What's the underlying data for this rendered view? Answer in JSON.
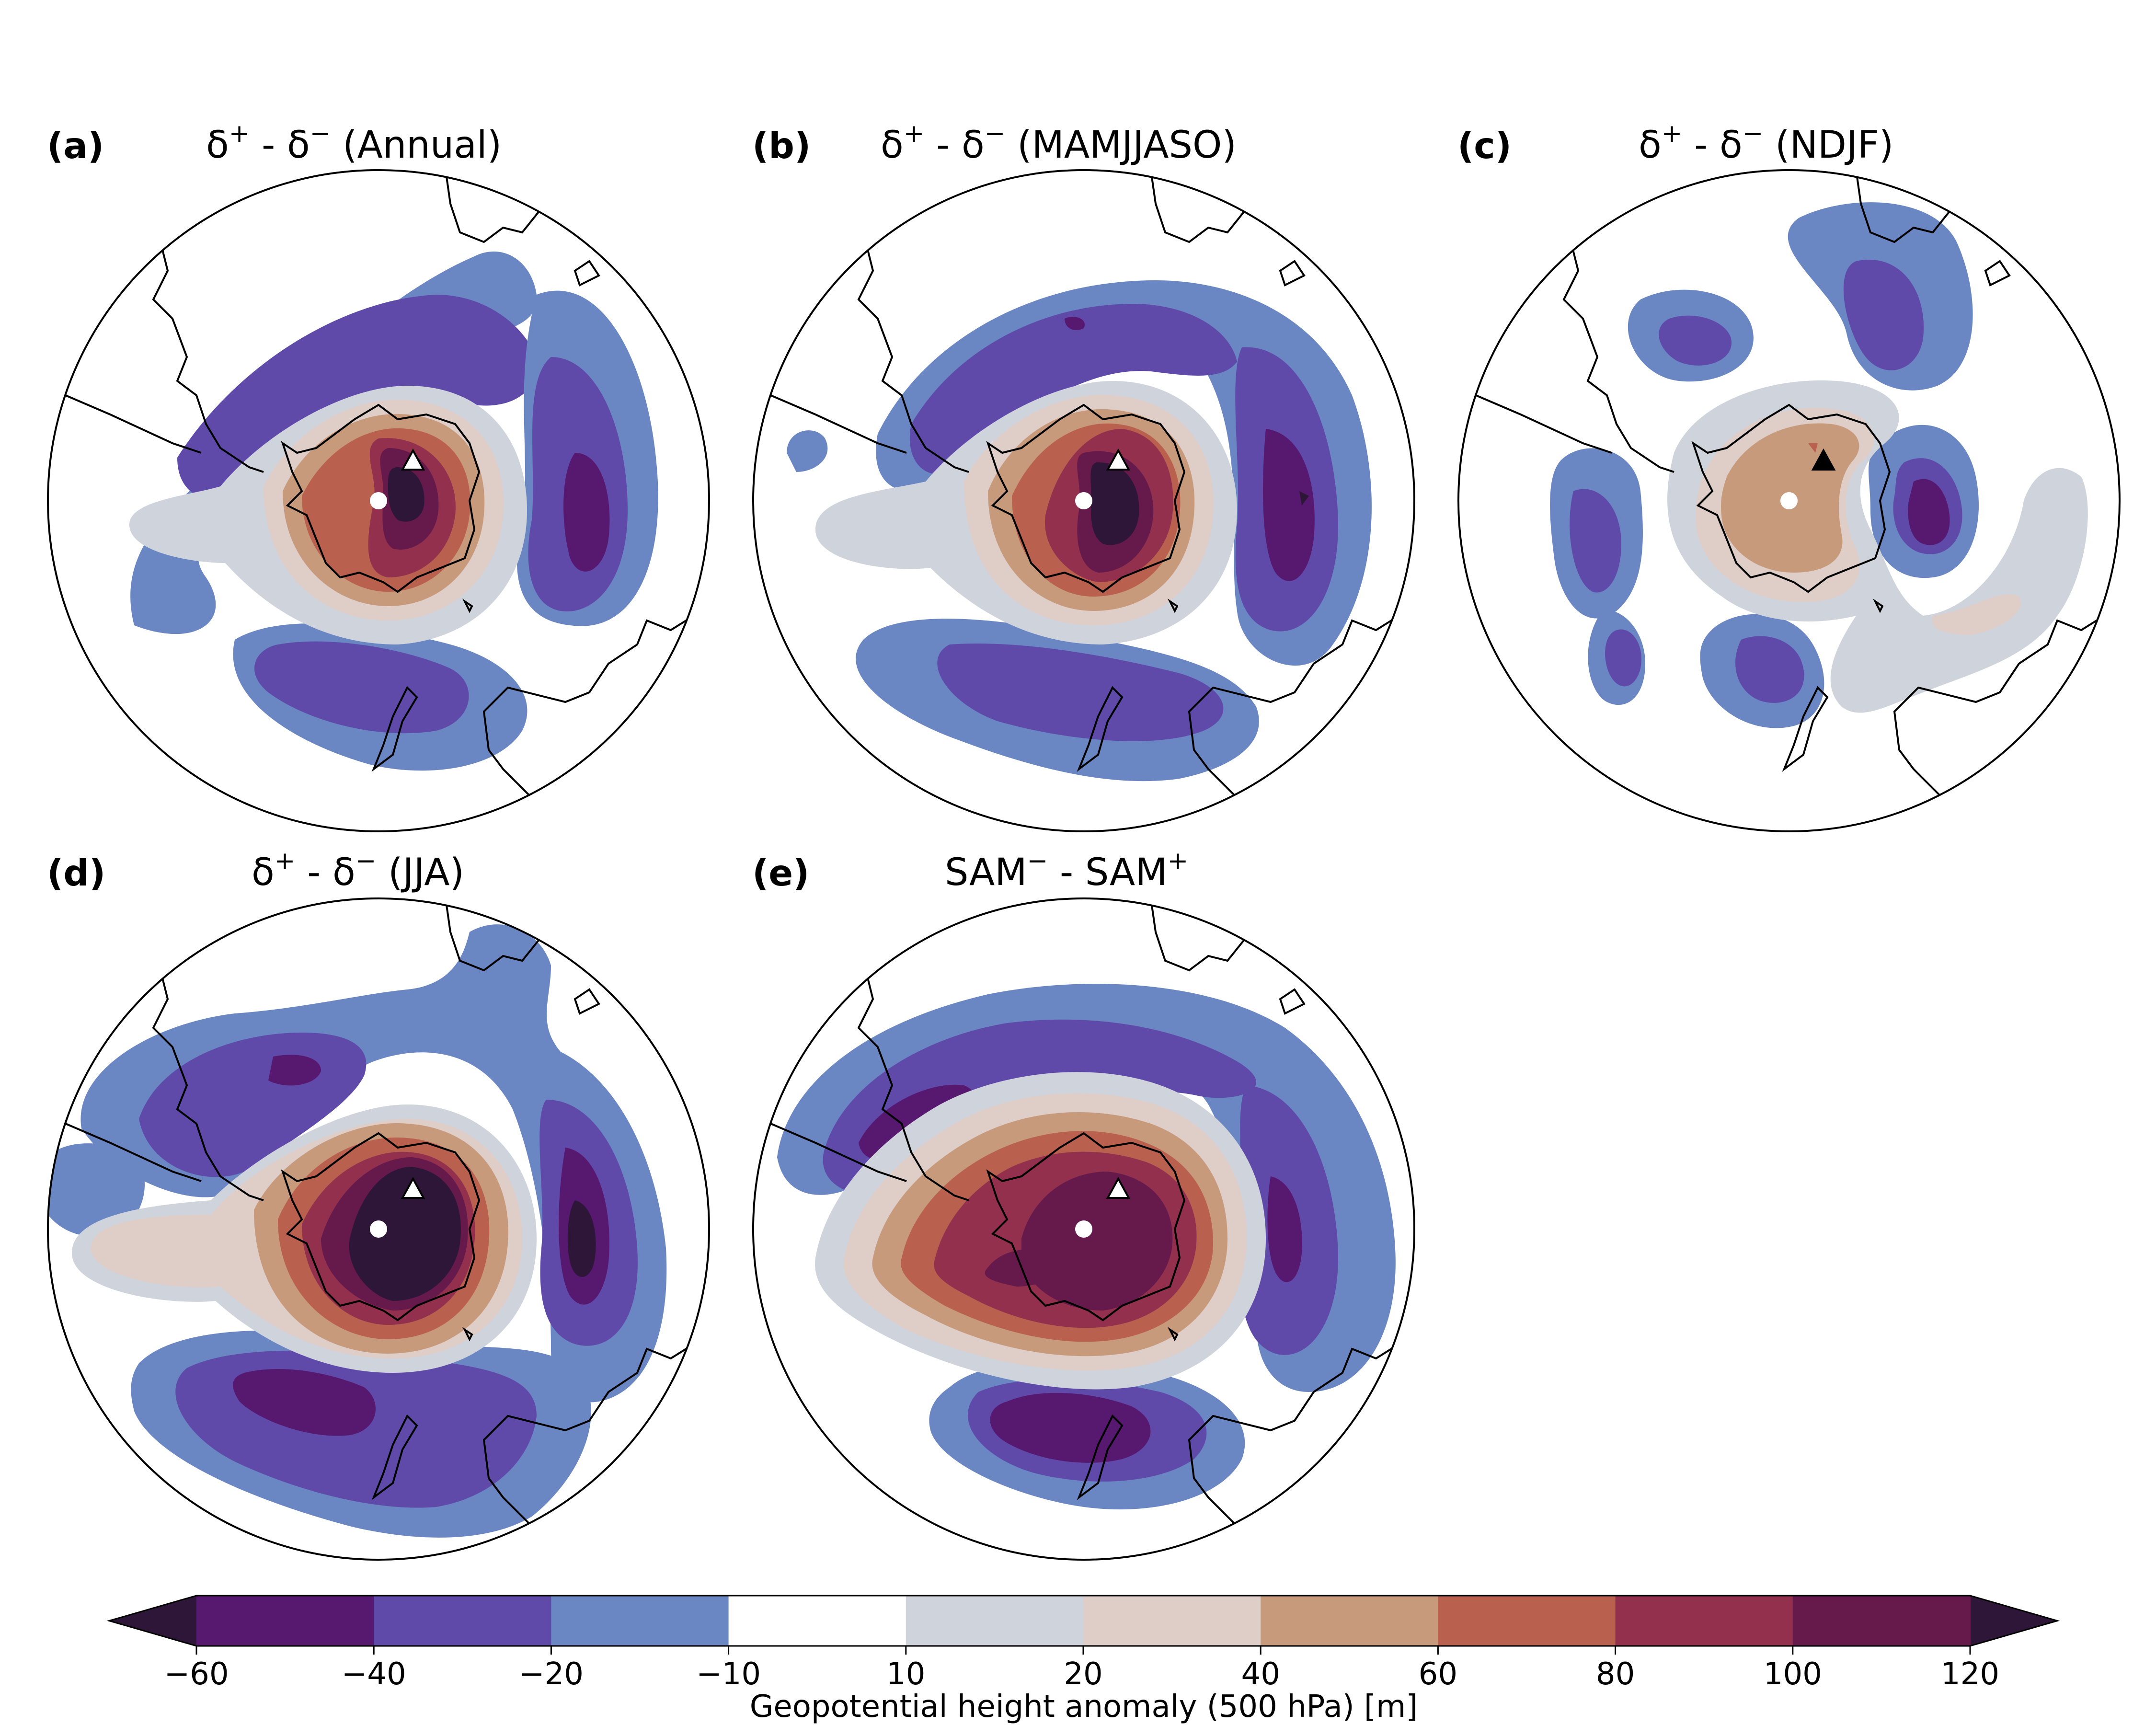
{
  "panels": [
    {
      "id": "a",
      "letter": "(a)",
      "title_main": "δ",
      "title_sup1": "+",
      "title_mid": " - δ",
      "title_sup2": "−",
      "title_tail": " (Annual)"
    },
    {
      "id": "b",
      "letter": "(b)",
      "title_main": "δ",
      "title_sup1": "+",
      "title_mid": " - δ",
      "title_sup2": "−",
      "title_tail": " (MAMJJASO)"
    },
    {
      "id": "c",
      "letter": "(c)",
      "title_main": "δ",
      "title_sup1": "+",
      "title_mid": " - δ",
      "title_sup2": "−",
      "title_tail": " (NDJF)"
    },
    {
      "id": "d",
      "letter": "(d)",
      "title_main": "δ",
      "title_sup1": "+",
      "title_mid": " - δ",
      "title_sup2": "−",
      "title_tail": " (JJA)"
    },
    {
      "id": "e",
      "letter": "(e)",
      "title_main": "SAM",
      "title_sup1": "−",
      "title_mid": " - SAM",
      "title_sup2": "+",
      "title_tail": ""
    }
  ],
  "colorbar": {
    "label": "Geopotential height anomaly (500 hPa) [m]",
    "ticks": [
      "−60",
      "−40",
      "−20",
      "−10",
      "10",
      "20",
      "40",
      "60",
      "80",
      "100",
      "120"
    ],
    "colors": [
      "#57186f",
      "#5f4aaa",
      "#6a86c3",
      "#ffffff",
      "#cfd3dc",
      "#dfcdc7",
      "#c89a7c",
      "#b9604f",
      "#92304e",
      "#651a4b"
    ],
    "extend_low_color": "#2e1638",
    "extend_high_color": "#2e1638"
  },
  "markers": {
    "site_circle_color": "#ffffff",
    "site_triangle_color_open": "#ffffff",
    "site_triangle_color_filled": "#000000"
  }
}
